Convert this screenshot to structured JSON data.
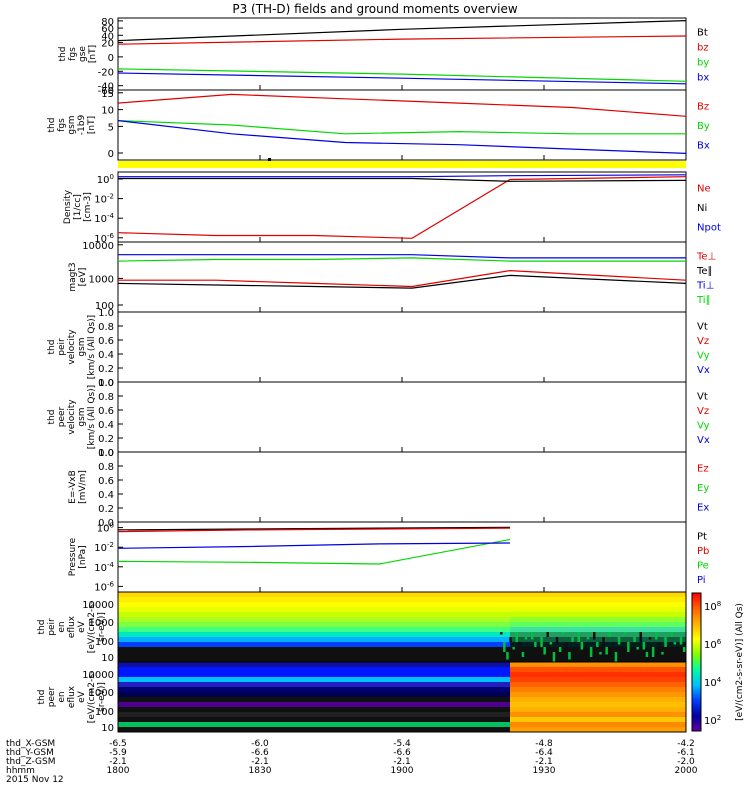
{
  "title": "P3 (TH-D) fields and ground moments overview",
  "colors": {
    "black": "#000000",
    "red": "#e00000",
    "green": "#00d800",
    "blue": "#0000e0",
    "yellow": "#ffff00"
  },
  "chart_data": [
    {
      "type": "line",
      "id": "fgs_gse",
      "ylabel": [
        "thd",
        "fgs",
        "gse",
        "[nT]"
      ],
      "yticks": [
        "80",
        "60",
        "40",
        "20",
        "0",
        "-20",
        "-40",
        "-60"
      ],
      "ylim": [
        -60,
        80
      ],
      "series": [
        {
          "name": "Bt",
          "color": "black",
          "values": [
            36,
            58,
            75
          ]
        },
        {
          "name": "bz",
          "color": "red",
          "values": [
            29,
            39,
            45
          ]
        },
        {
          "name": "by",
          "color": "green",
          "values": [
            -19,
            -29,
            -43
          ]
        },
        {
          "name": "bx",
          "color": "blue",
          "values": [
            -27,
            -37,
            -48
          ]
        }
      ]
    },
    {
      "type": "line",
      "id": "fgs_gsm",
      "ylabel": [
        "thd",
        "fgs",
        "gsm",
        "-1b9",
        "[nT]"
      ],
      "yticks": [
        "15",
        "10",
        "5",
        "0"
      ],
      "ylim": [
        -1,
        15
      ],
      "series": [
        {
          "name": "Bz",
          "color": "red",
          "values": [
            12,
            14,
            13,
            12,
            11,
            9
          ]
        },
        {
          "name": "By",
          "color": "green",
          "values": [
            8,
            7,
            5,
            5.5,
            5,
            5
          ]
        },
        {
          "name": "Bx",
          "color": "blue",
          "values": [
            8,
            5,
            3,
            2.5,
            1.5,
            0.5
          ]
        }
      ]
    },
    {
      "type": "line",
      "id": "density",
      "ylabel": [
        "Density",
        "[1/cc]",
        "[cm-3]"
      ],
      "yticks": [
        "10^0",
        "10^-2",
        "10^-4",
        "10^-6"
      ],
      "ylim": [
        -7,
        0.5
      ],
      "series": [
        {
          "name": "Ne",
          "color": "red",
          "values": [
            -6,
            -6.3,
            -6.3,
            -6.6,
            -0.3,
            0
          ]
        },
        {
          "name": "Ni",
          "color": "black",
          "values": [
            -0.2,
            -0.2,
            -0.2,
            -0.2,
            -0.5,
            -0.4
          ]
        },
        {
          "name": "Npot",
          "color": "blue",
          "values": [
            0,
            0,
            0,
            0,
            0.1,
            0.2
          ]
        }
      ]
    },
    {
      "type": "line",
      "id": "temperature",
      "ylabel": [
        "magt3",
        "[eV]"
      ],
      "yticks": [
        "10000",
        "1000",
        "100"
      ],
      "ylim": [
        2,
        4.2
      ],
      "series": [
        {
          "name": "Te⊥",
          "color": "red",
          "values": [
            3.0,
            3.0,
            2.9,
            2.8,
            3.3,
            3.0
          ]
        },
        {
          "name": "Te∥",
          "color": "black",
          "values": [
            2.9,
            2.85,
            2.8,
            2.75,
            3.15,
            2.9
          ]
        },
        {
          "name": "Ti⊥",
          "color": "blue",
          "values": [
            3.8,
            3.8,
            3.8,
            3.8,
            3.7,
            3.7
          ]
        },
        {
          "name": "Ti∥",
          "color": "green",
          "values": [
            3.6,
            3.65,
            3.65,
            3.7,
            3.6,
            3.6
          ]
        }
      ]
    },
    {
      "type": "line",
      "id": "peir_velocity",
      "ylabel": [
        "thd",
        "peir",
        "velocity",
        "gsm",
        "[km/s (All Qs)]"
      ],
      "yticks": [
        "1.0",
        "0.8",
        "0.6",
        "0.4",
        "0.2",
        "0.0"
      ],
      "ylim": [
        0,
        1
      ],
      "series": [
        {
          "name": "Vt",
          "color": "black",
          "values": []
        },
        {
          "name": "Vz",
          "color": "red",
          "values": []
        },
        {
          "name": "Vy",
          "color": "green",
          "values": []
        },
        {
          "name": "Vx",
          "color": "blue",
          "values": []
        }
      ]
    },
    {
      "type": "line",
      "id": "peer_velocity",
      "ylabel": [
        "thd",
        "peer",
        "velocity",
        "gsm",
        "[km/s (All Qs)]"
      ],
      "yticks": [
        "1.0",
        "0.8",
        "0.6",
        "0.4",
        "0.2",
        "0.0"
      ],
      "ylim": [
        0,
        1
      ],
      "series": [
        {
          "name": "Vt",
          "color": "black",
          "values": []
        },
        {
          "name": "Vz",
          "color": "red",
          "values": []
        },
        {
          "name": "Vy",
          "color": "green",
          "values": []
        },
        {
          "name": "Vx",
          "color": "blue",
          "values": []
        }
      ]
    },
    {
      "type": "line",
      "id": "efield",
      "ylabel": [
        "E=-VxB",
        "[mV/m]"
      ],
      "yticks": [
        "1.0",
        "0.8",
        "0.6",
        "0.4",
        "0.2",
        "0.0"
      ],
      "ylim": [
        0,
        1
      ],
      "series": [
        {
          "name": "Ez",
          "color": "red",
          "values": []
        },
        {
          "name": "Ey",
          "color": "green",
          "values": []
        },
        {
          "name": "Ex",
          "color": "blue",
          "values": []
        }
      ]
    },
    {
      "type": "line",
      "id": "pressure",
      "ylabel": [
        "Pressure",
        "[nPa]"
      ],
      "yticks": [
        "10^0",
        "10^-2",
        "10^-4",
        "10^-6"
      ],
      "ylim": [
        -7,
        1
      ],
      "series": [
        {
          "name": "Pt",
          "color": "black",
          "values": [
            0.1,
            0.2,
            0.3,
            0.4
          ]
        },
        {
          "name": "Pb",
          "color": "red",
          "values": [
            -0.1,
            0.1,
            0.2,
            0.3
          ]
        },
        {
          "name": "Pe",
          "color": "green",
          "values": [
            -3.5,
            -3.6,
            -3.8,
            -1
          ]
        },
        {
          "name": "Pi",
          "color": "blue",
          "values": [
            -2,
            -1.8,
            -1.5,
            -1.4
          ]
        }
      ]
    },
    {
      "type": "heatmap",
      "id": "peir_spec",
      "ylabel": [
        "thd",
        "peir",
        "en",
        "eflux",
        "eV",
        "[eV/(cm2-s-",
        "sr-eV)]"
      ],
      "yticks": [
        "10000",
        "1000",
        "100",
        "10"
      ],
      "ylim": [
        10,
        30000
      ]
    },
    {
      "type": "heatmap",
      "id": "peer_spec",
      "ylabel": [
        "thd",
        "peer",
        "en",
        "eflux",
        "eV",
        "[eV/(cm2-s-",
        "sr-eV)]"
      ],
      "yticks": [
        "10000",
        "1000",
        "100",
        "10"
      ],
      "ylim": [
        10,
        30000
      ]
    }
  ],
  "colorbar": {
    "ticks": [
      "10^8",
      "10^6",
      "10^4",
      "10^2"
    ],
    "label": "[eV/(cm2-s-sr-eV)] (All Qs)",
    "stops": [
      "#ff0000",
      "#ff6000",
      "#ffb000",
      "#ffff00",
      "#80ff00",
      "#00ffa0",
      "#00c0ff",
      "#0040ff",
      "#0000a0",
      "#6000a0"
    ]
  },
  "xaxis": {
    "rows": [
      {
        "label": "thd_X-GSM",
        "values": [
          "-6.5",
          "-6.0",
          "-5.4",
          "-4.8",
          "-4.2"
        ]
      },
      {
        "label": "thd_Y-GSM",
        "values": [
          "-5.9",
          "-6.6",
          "-6.6",
          "-6.4",
          "-6.1"
        ]
      },
      {
        "label": "thd_Z-GSM",
        "values": [
          "-2.1",
          "-2.1",
          "-2.1",
          "-2.1",
          "-2.0"
        ]
      },
      {
        "label": "hhmm",
        "values": [
          "1800",
          "1830",
          "1900",
          "1930",
          "2000"
        ]
      }
    ],
    "date": "2015 Nov 12"
  }
}
